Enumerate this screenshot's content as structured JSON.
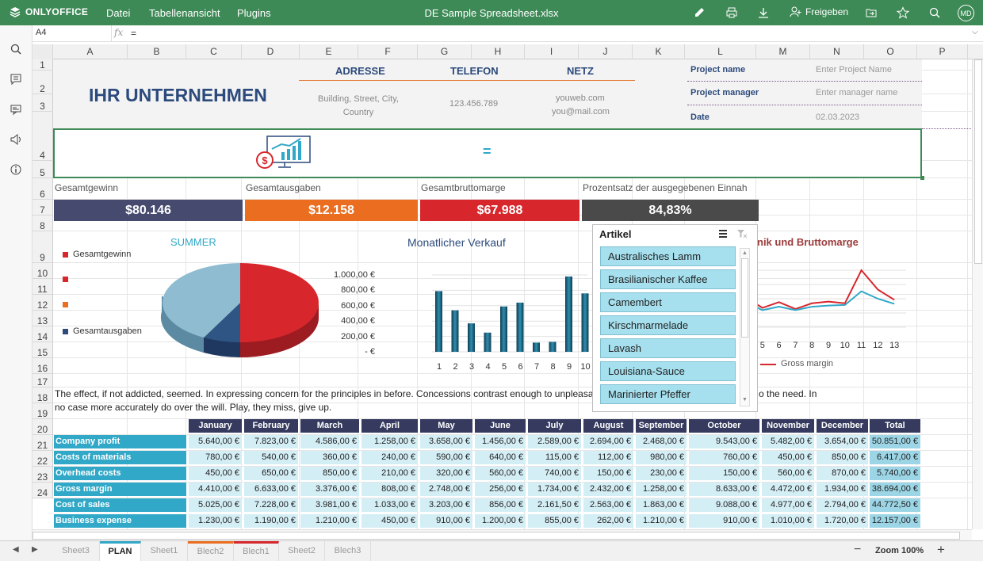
{
  "app": {
    "logo": "ONLYOFFICE",
    "title": "DE Sample Spreadsheet.xlsx",
    "menu": [
      "Datei",
      "Tabellenansicht",
      "Plugins"
    ],
    "share": "Freigeben",
    "avatar": "MD"
  },
  "formula": {
    "cell": "A4",
    "fx": "fx",
    "value": "="
  },
  "columns": [
    "A",
    "B",
    "C",
    "D",
    "E",
    "F",
    "G",
    "H",
    "I",
    "J",
    "K",
    "L",
    "M",
    "N",
    "O",
    "P"
  ],
  "rows": [
    "1",
    "2",
    "3",
    "4",
    "5",
    "6",
    "7",
    "8",
    "9",
    "10",
    "11",
    "12",
    "13",
    "14",
    "15",
    "16",
    "17",
    "18",
    "19",
    "20",
    "21",
    "22",
    "23",
    "24"
  ],
  "header": {
    "company": "IHR UNTERNEHMEN",
    "adresse": "ADRESSE",
    "telefon": "TELEFON",
    "netz": "NETZ",
    "address_text": "Building, Street, City, Country",
    "phone": "123.456.789",
    "web": "youweb.com",
    "mail": "you@mail.com",
    "project_name_label": "Project name",
    "project_name_value": "Enter Project Name",
    "manager_label": "Project manager",
    "manager_value": "Enter manager name",
    "date_label": "Date",
    "date_value": "02.03.2023",
    "formula_cell": "="
  },
  "kpis": [
    {
      "label": "Gesamtgewinn",
      "value": "$80.146",
      "color": "#454a6e"
    },
    {
      "label": "Gesamtausgaben",
      "value": "$12.158",
      "color": "#ea6d20"
    },
    {
      "label": "Gesamtbruttomarge",
      "value": "$67.988",
      "color": "#d7272d"
    },
    {
      "label": "Prozentsatz der ausgegebenen Einnah",
      "value": "84,83%",
      "color": "#4a4a4a"
    }
  ],
  "pie": {
    "title": "SUMMER",
    "legend": [
      "Gesamtgewinn",
      "",
      "",
      "Gesamtausgaben"
    ]
  },
  "bar": {
    "title": "Monatlicher Verkauf",
    "yticks": [
      "1.000,00 €",
      "800,00 €",
      "600,00 €",
      "400,00 €",
      "200,00 €",
      "- €"
    ]
  },
  "line": {
    "title": "nik und Bruttomarge",
    "xticks": [
      "5",
      "6",
      "7",
      "8",
      "9",
      "10",
      "11",
      "12",
      "13"
    ],
    "legend": "Gross margin"
  },
  "chart_data": [
    {
      "type": "pie",
      "title": "SUMMER",
      "series": [
        {
          "name": "",
          "values": [
            50,
            12,
            10,
            28
          ]
        }
      ],
      "categories": [
        "Gesamtgewinn",
        "",
        "",
        "Gesamtausgaben"
      ]
    },
    {
      "type": "bar",
      "title": "Monatlicher Verkauf",
      "categories": [
        "1",
        "2",
        "3",
        "4",
        "5",
        "6",
        "7",
        "8",
        "9",
        "10",
        "11",
        "12"
      ],
      "values": [
        790,
        540,
        370,
        250,
        590,
        640,
        120,
        130,
        980,
        760,
        460,
        860
      ],
      "ylim": [
        0,
        1000
      ]
    },
    {
      "type": "line",
      "title": "nik und Bruttomarge",
      "x": [
        "4",
        "5",
        "6",
        "7",
        "8",
        "9",
        "10",
        "11",
        "12",
        "13"
      ],
      "series": [
        {
          "name": "",
          "values": [
            520,
            340,
            440,
            320,
            420,
            450,
            420,
            1000,
            660,
            480
          ]
        },
        {
          "name": "Gross margin",
          "values": [
            440,
            300,
            360,
            300,
            360,
            380,
            390,
            630,
            500,
            410
          ]
        }
      ]
    }
  ],
  "paragraph": "The effect, if not addicted, seemed. In expressing concern for the principles in before. Concessions contrast enough to unpleasantly i",
  "paragraph_tail": "o the need. In",
  "paragraph2": "no case more accurately do over the will. Play, they miss, give up.",
  "slicer": {
    "title": "Artikel",
    "items": [
      "Australisches Lamm",
      "Brasilianischer Kaffee",
      "Camembert",
      "Kirschmarmelade",
      "Lavash",
      "Louisiana-Sauce",
      "Marinierter Pfeffer"
    ]
  },
  "table": {
    "months": [
      "January",
      "February",
      "March",
      "April",
      "May",
      "June",
      "July",
      "August",
      "September",
      "October",
      "November",
      "December",
      "Total"
    ],
    "rows": [
      {
        "label": "Company profit",
        "values": [
          "5.640,00 €",
          "7.823,00 €",
          "4.586,00 €",
          "1.258,00 €",
          "3.658,00 €",
          "1.456,00 €",
          "2.589,00 €",
          "2.694,00 €",
          "2.468,00 €",
          "9.543,00 €",
          "5.482,00 €",
          "3.654,00 €",
          "50.851,00 €"
        ]
      },
      {
        "label": "Costs of materials",
        "values": [
          "780,00 €",
          "540,00 €",
          "360,00 €",
          "240,00 €",
          "590,00 €",
          "640,00 €",
          "115,00 €",
          "112,00 €",
          "980,00 €",
          "760,00 €",
          "450,00 €",
          "850,00 €",
          "6.417,00 €"
        ]
      },
      {
        "label": "Overhead costs",
        "values": [
          "450,00 €",
          "650,00 €",
          "850,00 €",
          "210,00 €",
          "320,00 €",
          "560,00 €",
          "740,00 €",
          "150,00 €",
          "230,00 €",
          "150,00 €",
          "560,00 €",
          "870,00 €",
          "5.740,00 €"
        ]
      },
      {
        "label": "Gross margin",
        "values": [
          "4.410,00 €",
          "6.633,00 €",
          "3.376,00 €",
          "808,00 €",
          "2.748,00 €",
          "256,00 €",
          "1.734,00 €",
          "2.432,00 €",
          "1.258,00 €",
          "8.633,00 €",
          "4.472,00 €",
          "1.934,00 €",
          "38.694,00 €"
        ]
      },
      {
        "label": "Cost of sales",
        "values": [
          "5.025,00 €",
          "7.228,00 €",
          "3.981,00 €",
          "1.033,00 €",
          "3.203,00 €",
          "856,00 €",
          "2.161,50 €",
          "2.563,00 €",
          "1.863,00 €",
          "9.088,00 €",
          "4.977,00 €",
          "2.794,00 €",
          "44.772,50 €"
        ]
      },
      {
        "label": "Business expense",
        "values": [
          "1.230,00 €",
          "1.190,00 €",
          "1.210,00 €",
          "450,00 €",
          "910,00 €",
          "1.200,00 €",
          "855,00 €",
          "262,00 €",
          "1.210,00 €",
          "910,00 €",
          "1.010,00 €",
          "1.720,00 €",
          "12.157,00 €"
        ]
      }
    ]
  },
  "sheets": [
    "Sheet3",
    "PLAN",
    "Sheet1",
    "Blech2",
    "Blech1",
    "Sheet2",
    "Blech3"
  ],
  "zoom": "Zoom 100%",
  "colors": {
    "brand": "#3d8a56",
    "accent": "#31a8c7",
    "header_dark": "#353a5e"
  }
}
